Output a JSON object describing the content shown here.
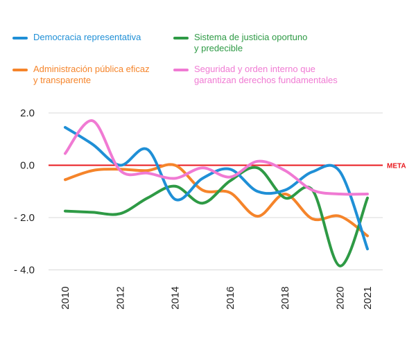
{
  "chart_data": {
    "type": "line",
    "title": "",
    "xlabel": "",
    "ylabel": "",
    "x": [
      2010,
      2011,
      2012,
      2013,
      2014,
      2015,
      2016,
      2017,
      2018,
      2019,
      2020,
      2021
    ],
    "ylim": [
      -4.5,
      2.3
    ],
    "yticks": [
      {
        "value": 2.0,
        "label": "2.0"
      },
      {
        "value": 0.0,
        "label": "0.0"
      },
      {
        "value": -2.0,
        "label": "- 2.0"
      },
      {
        "value": -4.0,
        "label": "- 4.0"
      }
    ],
    "xticks": [
      "2010",
      "2012",
      "2014",
      "2016",
      "2018",
      "2020",
      "2021"
    ],
    "xtick_values": [
      2010,
      2012,
      2014,
      2016,
      2018,
      2020,
      2021
    ],
    "grid": "horizontal",
    "legend_position": "top",
    "reference_line": {
      "value": 0.0,
      "label": "META",
      "color": "#e8191e"
    },
    "series": [
      {
        "name": "Democracia representativa",
        "color": "#1f8fd6",
        "values": [
          1.45,
          0.8,
          0.0,
          0.6,
          -1.3,
          -0.5,
          -0.15,
          -1.0,
          -0.95,
          -0.25,
          -0.25,
          -3.2
        ]
      },
      {
        "name": "Administración pública eficaz\ny transparente",
        "color": "#f5842a",
        "values": [
          -0.55,
          -0.2,
          -0.15,
          -0.2,
          0.0,
          -0.95,
          -1.05,
          -1.95,
          -1.1,
          -2.05,
          -1.95,
          -2.7
        ]
      },
      {
        "name": "Sistema de justicia oportuno\ny predecible",
        "color": "#2e9a45",
        "values": [
          -1.75,
          -1.8,
          -1.85,
          -1.25,
          -0.8,
          -1.45,
          -0.6,
          -0.1,
          -1.25,
          -0.95,
          -3.85,
          -1.25
        ]
      },
      {
        "name": "Seguridad y orden interno que\ngarantizan derechos fundamentales",
        "color": "#f07ad3",
        "values": [
          0.45,
          1.7,
          -0.2,
          -0.3,
          -0.5,
          -0.1,
          -0.45,
          0.15,
          -0.2,
          -0.95,
          -1.1,
          -1.1
        ]
      }
    ]
  }
}
